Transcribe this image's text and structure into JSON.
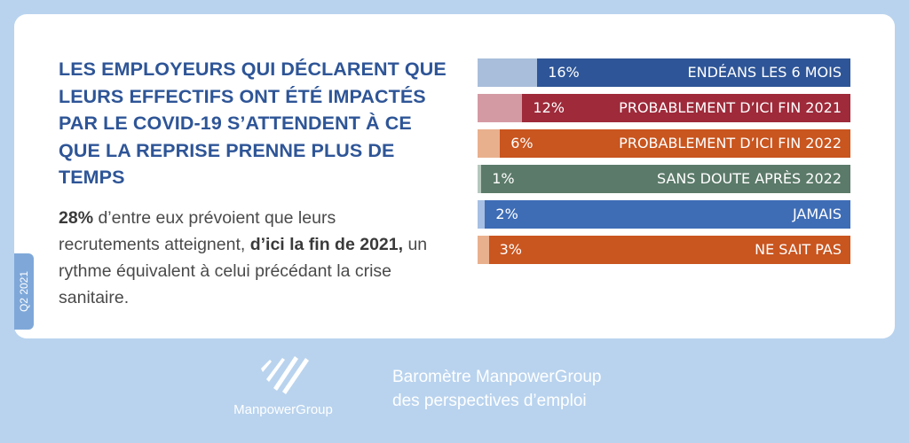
{
  "quarter_tag": "Q2 2021",
  "headline": "LES EMPLOYEURS QUI DÉCLARENT QUE LEURS EFFECTIFS ONT ÉTÉ IMPACTÉS PAR LE COVID-19 S’ATTENDENT À CE QUE LA REPRISE PRENNE PLUS DE TEMPS",
  "body": {
    "pct": "28%",
    "part1": " d’entre eux prévoient que leurs recrutements atteignent, ",
    "bold2": "d’ici la fin de 2021,",
    "part3": " un rythme équivalent à celui précédant la crise sanitaire."
  },
  "chart_data": {
    "type": "bar",
    "orientation": "horizontal",
    "categories": [
      "ENDÉANS LES 6 MOIS",
      "PROBABLEMENT D’ICI FIN 2021",
      "PROBABLEMENT D’ICI FIN 2022",
      "SANS DOUTE APRÈS 2022",
      "JAMAIS",
      "NE SAIT PAS"
    ],
    "values": [
      16,
      12,
      6,
      1,
      2,
      3
    ],
    "value_labels": [
      "16%",
      "12%",
      "6%",
      "1%",
      "2%",
      "3%"
    ],
    "colors": [
      "#2e5597",
      "#9e2a3a",
      "#c9551f",
      "#5b7a69",
      "#3e6db6",
      "#c9551f"
    ],
    "light_colors": [
      "#a9bedb",
      "#d49aa3",
      "#e9b08d",
      "#b6c8bd",
      "#a6bfe3",
      "#e9b08d"
    ],
    "xlim": [
      0,
      100
    ]
  },
  "footer": {
    "logo_text": "ManpowerGroup",
    "line1": "Baromètre ManpowerGroup",
    "line2": "des perspectives d’emploi"
  }
}
